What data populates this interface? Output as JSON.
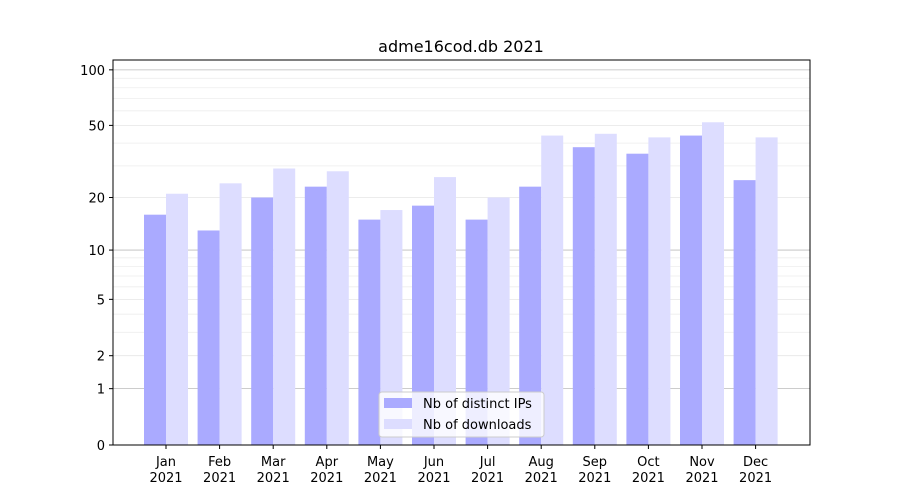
{
  "chart_data": {
    "type": "bar",
    "title": "adme16cod.db 2021",
    "xlabel": "",
    "ylabel": "",
    "yscale": "log(1+x)",
    "ylim": [
      0,
      113
    ],
    "yticks": [
      0,
      1,
      2,
      5,
      10,
      20,
      50,
      100
    ],
    "grid": true,
    "legend_position": "bottom-center",
    "categories": [
      "Jan\n2021",
      "Feb\n2021",
      "Mar\n2021",
      "Apr\n2021",
      "May\n2021",
      "Jun\n2021",
      "Jul\n2021",
      "Aug\n2021",
      "Sep\n2021",
      "Oct\n2021",
      "Nov\n2021",
      "Dec\n2021"
    ],
    "series": [
      {
        "name": "Nb of distinct IPs",
        "color": "#aaaaff",
        "values": [
          16,
          13,
          20,
          23,
          15,
          18,
          15,
          23,
          38,
          35,
          44,
          25
        ]
      },
      {
        "name": "Nb of downloads",
        "color": "#ddddff",
        "values": [
          21,
          24,
          29,
          28,
          17,
          26,
          20,
          44,
          45,
          43,
          52,
          43
        ]
      }
    ]
  }
}
